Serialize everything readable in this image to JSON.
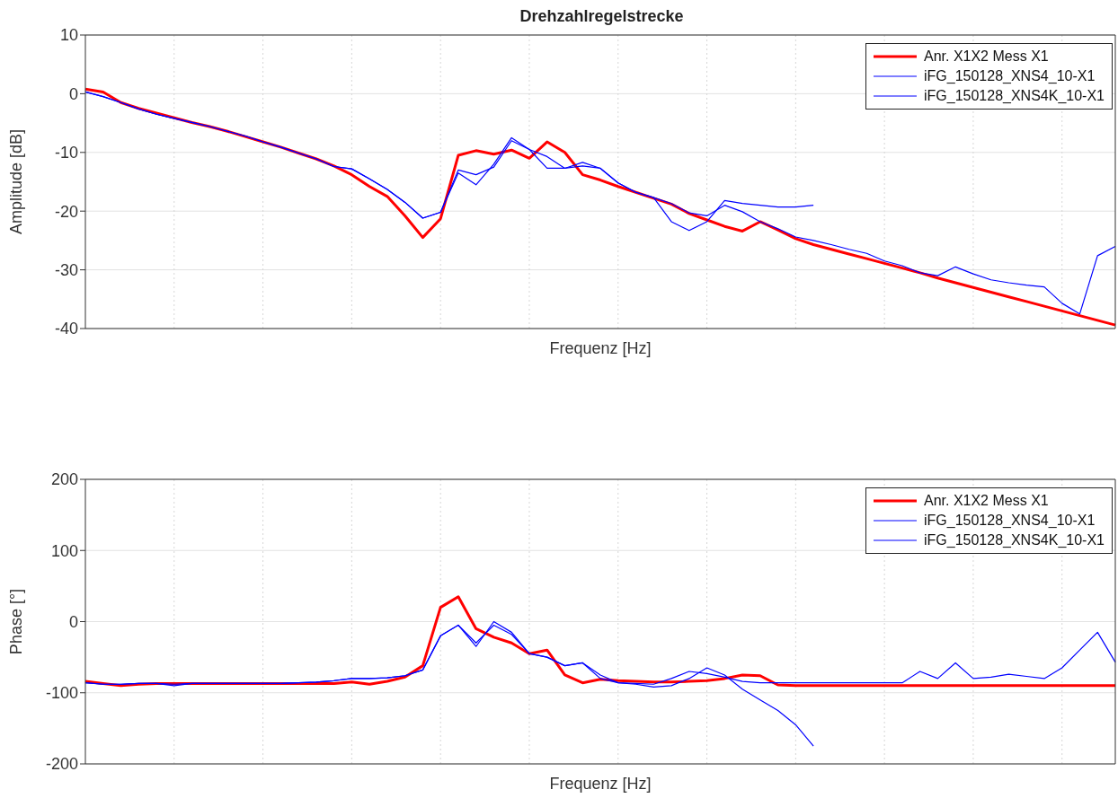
{
  "chart_data": [
    {
      "type": "line",
      "title": "Drehzahlregelstrecke",
      "xlabel": "Frequenz [Hz]",
      "ylabel": "Amplitude [dB]",
      "ylim": [
        -40,
        10
      ],
      "yticks": [
        -40,
        -30,
        -20,
        -10,
        0,
        10
      ],
      "grid": true,
      "legend": "top right",
      "categories": [
        null,
        null,
        null,
        null,
        null,
        null,
        null,
        null,
        null,
        null,
        null,
        null,
        null,
        null,
        null,
        null,
        null,
        null,
        null,
        null,
        null,
        null,
        null,
        null,
        null,
        null,
        null,
        null,
        null,
        null,
        null,
        null,
        null,
        null,
        null,
        null,
        null,
        null,
        null,
        null,
        null,
        null,
        null,
        null,
        null,
        null,
        null,
        null,
        null,
        null,
        null,
        null,
        null,
        null,
        null,
        null,
        null,
        null,
        null
      ],
      "series": [
        {
          "name": "Anr. X1X2 Mess X1",
          "color": "#ff0000",
          "values": [
            0.8,
            0.3,
            -1.5,
            -2.5,
            -3.3,
            -4.1,
            -4.9,
            -5.6,
            -6.4,
            -7.3,
            -8.2,
            -9.1,
            -10.1,
            -11.1,
            -12.3,
            -13.8,
            -15.8,
            -17.5,
            -20.8,
            -24.5,
            -21.3,
            -10.5,
            -9.7,
            -10.3,
            -9.6,
            -11,
            -8.2,
            -10,
            -13.8,
            -14.7,
            -15.8,
            -16.8,
            -17.8,
            -18.8,
            -20.4,
            -21.5,
            -22.6,
            -23.4,
            -21.8,
            -23.2,
            -24.7,
            -25.7,
            -26.5,
            -27.3,
            -28.1,
            -28.9,
            -29.7,
            -30.5,
            -31.4,
            -32.2,
            -33,
            -33.8,
            -34.6,
            -35.4,
            -36.2,
            -37,
            -37.8,
            -38.6,
            -39.4
          ]
        },
        {
          "name": "iFG_150128_XNS4_10-X1",
          "color": "#0000ff",
          "values": [
            0.3,
            -0.5,
            -1.5,
            -2.6,
            -3.5,
            -4.2,
            -4.9,
            -5.6,
            -6.4,
            -7.2,
            -8.2,
            -9.1,
            -10.1,
            -11.1,
            -12.4,
            -12.8,
            -14.5,
            -16.3,
            -18.5,
            -21.2,
            -20.2,
            -13.5,
            -15.5,
            -12,
            -7.5,
            -9.5,
            -10.7,
            -12.7,
            -12.3,
            -12.7,
            -15.2,
            -16.8,
            -17.7,
            -21.8,
            -23.3,
            -21.8,
            -18.2,
            -18.7,
            -19,
            -19.3,
            -19.3,
            -19,
            null,
            null,
            null,
            null,
            null,
            null,
            null,
            null,
            null,
            null,
            null,
            null,
            null,
            null,
            null,
            null,
            null
          ]
        },
        {
          "name": "iFG_150128_XNS4K_10-X1",
          "color": "#0000ff",
          "values": [
            0.3,
            -0.5,
            -1.5,
            -2.6,
            -3.5,
            -4.2,
            -4.9,
            -5.6,
            -6.4,
            -7.2,
            -8.2,
            -9.1,
            -10.1,
            -11.1,
            -12.4,
            -12.8,
            -14.5,
            -16.3,
            -18.5,
            -21.2,
            -20.2,
            -13,
            -13.8,
            -12.5,
            -8,
            -9.5,
            -12.7,
            -12.7,
            -11.7,
            -12.7,
            -15.2,
            -16.8,
            -17.7,
            -18.7,
            -20.3,
            -20.8,
            -19,
            -20.1,
            -21.8,
            -23,
            -24.4,
            -25,
            -25.7,
            -26.5,
            -27.2,
            -28.5,
            -29.3,
            -30.5,
            -31,
            -29.5,
            -30.7,
            -31.7,
            -32.2,
            -32.6,
            -32.9,
            -35.7,
            -37.5,
            -27.6,
            -26
          ]
        }
      ]
    },
    {
      "type": "line",
      "xlabel": "Frequenz [Hz]",
      "ylabel": "Phase [°]",
      "ylim": [
        -200,
        200
      ],
      "yticks": [
        -200,
        -100,
        0,
        100,
        200
      ],
      "grid": true,
      "legend": "top right",
      "categories": [
        null,
        null,
        null,
        null,
        null,
        null,
        null,
        null,
        null,
        null,
        null,
        null,
        null,
        null,
        null,
        null,
        null,
        null,
        null,
        null,
        null,
        null,
        null,
        null,
        null,
        null,
        null,
        null,
        null,
        null,
        null,
        null,
        null,
        null,
        null,
        null,
        null,
        null,
        null,
        null,
        null,
        null,
        null,
        null,
        null,
        null,
        null,
        null,
        null,
        null,
        null,
        null,
        null,
        null,
        null,
        null,
        null,
        null,
        null
      ],
      "series": [
        {
          "name": "Anr. X1X2 Mess X1",
          "color": "#ff0000",
          "values": [
            -84,
            -87,
            -90,
            -88,
            -87,
            -87,
            -87,
            -87,
            -87,
            -87,
            -87,
            -87,
            -87,
            -87,
            -87,
            -85,
            -88,
            -84,
            -78,
            -62,
            20,
            35,
            -10,
            -22,
            -30,
            -45,
            -40,
            -75,
            -86,
            -81,
            -83,
            -84,
            -85,
            -85,
            -84,
            -83,
            -80,
            -75,
            -76,
            -89,
            -90,
            -90,
            -90,
            -90,
            -90,
            -90,
            -90,
            -90,
            -90,
            -90,
            -90,
            -90,
            -90,
            -90,
            -90,
            -90,
            -90,
            -90,
            -90
          ]
        },
        {
          "name": "iFG_150128_XNS4_10-X1",
          "color": "#0000ff",
          "values": [
            -86,
            -88,
            -88,
            -87,
            -87,
            -88,
            -87,
            -87,
            -87,
            -87,
            -87,
            -87,
            -86,
            -85,
            -83,
            -80,
            -80,
            -79,
            -76,
            -68,
            -20,
            -5,
            -35,
            0,
            -15,
            -45,
            -50,
            -62,
            -58,
            -75,
            -86,
            -88,
            -92,
            -90,
            -80,
            -65,
            -75,
            -95,
            -110,
            -125,
            -145,
            -175,
            null,
            null,
            null,
            null,
            null,
            null,
            null,
            null,
            null,
            null,
            null,
            null,
            null,
            null,
            null,
            null,
            null
          ]
        },
        {
          "name": "iFG_150128_XNS4K_10-X1",
          "color": "#0000ff",
          "values": [
            -86,
            -88,
            -88,
            -87,
            -87,
            -90,
            -87,
            -87,
            -87,
            -87,
            -87,
            -87,
            -86,
            -85,
            -83,
            -80,
            -80,
            -79,
            -76,
            -68,
            -20,
            -5,
            -30,
            -5,
            -18,
            -45,
            -50,
            -62,
            -58,
            -80,
            -86,
            -87,
            -88,
            -80,
            -70,
            -73,
            -78,
            -84,
            -86,
            -86,
            -86,
            -86,
            -86,
            -86,
            -86,
            -86,
            -86,
            -70,
            -80,
            -58,
            -80,
            -78,
            -74,
            -77,
            -80,
            -65,
            -40,
            -15,
            -57
          ]
        }
      ]
    }
  ]
}
